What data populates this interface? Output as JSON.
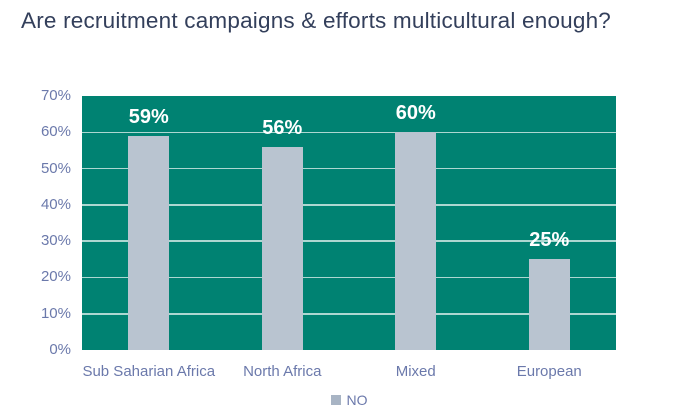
{
  "title": "Are recruitment campaigns & efforts multicultural enough?",
  "colors": {
    "plot_bg": "#008272",
    "bar": "#b9c4d0",
    "gridline": "rgba(255,255,255,0.68)",
    "title_text": "#333f5b",
    "axis_text": "#6b79ab",
    "data_label": "#ffffff",
    "legend_swatch": "#a8b4c4"
  },
  "chart_data": {
    "type": "bar",
    "title": "Are recruitment campaigns & efforts multicultural enough?",
    "categories": [
      "Sub Saharian Africa",
      "North Africa",
      "Mixed",
      "European"
    ],
    "series": [
      {
        "name": "NO",
        "values": [
          59,
          56,
          60,
          25
        ]
      }
    ],
    "data_labels": [
      "59%",
      "56%",
      "60%",
      "25%"
    ],
    "xlabel": "",
    "ylabel": "",
    "ylim": [
      0,
      70
    ],
    "ytick_step": 10,
    "ytick_labels": [
      "0%",
      "10%",
      "20%",
      "30%",
      "40%",
      "50%",
      "60%",
      "70%"
    ],
    "grid": true,
    "plot_area_filled": true,
    "legend": {
      "position": "bottom",
      "entries": [
        "NO"
      ]
    }
  },
  "legend": {
    "label": "NO"
  }
}
